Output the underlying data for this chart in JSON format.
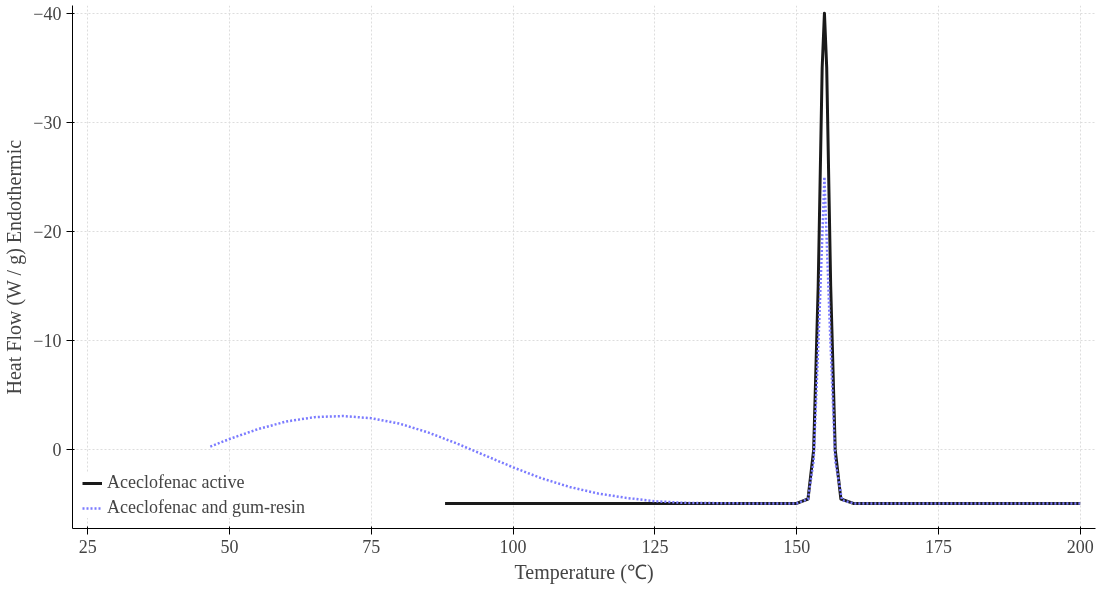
{
  "chart_data": {
    "type": "line",
    "xlabel": "Temperature (℃)",
    "ylabel": "Heat Flow (W / g) Endothermic",
    "xlim": [
      22.3,
      202.7
    ],
    "ylim": [
      7.2,
      -40.7
    ],
    "xticks": [
      25,
      50,
      75,
      100,
      125,
      150,
      175,
      200
    ],
    "yticks": [
      -40,
      -30,
      -20,
      -10,
      0
    ],
    "grid": true,
    "legend": "bottom left",
    "series": [
      {
        "name": "Aceclofenac active",
        "color": "#1a1a1a",
        "line_style": "solid",
        "x": [
          88,
          150,
          152,
          153,
          153.8,
          154.5,
          154.9,
          155.3,
          156,
          156.8,
          157.8,
          160,
          200
        ],
        "values": [
          4.9,
          4.9,
          4.5,
          0,
          -15,
          -35,
          -40,
          -35,
          -15,
          0,
          4.5,
          4.9,
          4.9
        ]
      },
      {
        "name": "Aceclofenac and gum-resin",
        "color": "#7b7bff",
        "line_style": "dotted",
        "x": [
          46.6,
          50,
          55,
          60,
          65,
          70,
          75,
          80,
          85,
          90,
          95,
          100,
          105,
          110,
          115,
          120,
          125,
          130,
          140,
          150,
          152,
          153,
          154,
          154.9,
          155.8,
          156.8,
          158,
          160,
          200
        ],
        "values": [
          -0.3,
          -1.0,
          -1.9,
          -2.6,
          -3.0,
          -3.1,
          -2.9,
          -2.4,
          -1.6,
          -0.6,
          0.5,
          1.6,
          2.6,
          3.4,
          4.0,
          4.4,
          4.7,
          4.85,
          4.9,
          4.9,
          4.5,
          1,
          -12,
          -25,
          -12,
          1,
          4.6,
          4.9,
          4.9
        ]
      }
    ]
  }
}
